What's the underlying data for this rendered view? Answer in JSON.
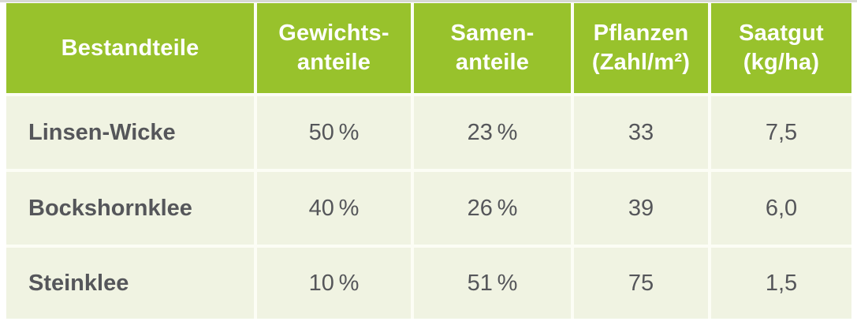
{
  "colors": {
    "header_bg": "#98c22c",
    "header_text": "#ffffff",
    "body_bg": "#f0f3e2",
    "body_text": "#55565a",
    "gap": "#fcfdf5",
    "top_line": "#d7d9d3",
    "page_bg": "#ffffff"
  },
  "table": {
    "columns": [
      {
        "id": "bestandteile",
        "lines": [
          "Bestandteile",
          ""
        ]
      },
      {
        "id": "gewichtsanteile",
        "lines": [
          "Gewichts-",
          "anteile"
        ]
      },
      {
        "id": "samenanteile",
        "lines": [
          "Samen-",
          "anteile"
        ]
      },
      {
        "id": "pflanzen",
        "lines": [
          "Pflanzen",
          "(Zahl/m²)"
        ]
      },
      {
        "id": "saatgut",
        "lines": [
          "Saatgut",
          "(kg/ha)"
        ]
      }
    ],
    "rows": [
      {
        "label": "Linsen-Wicke",
        "values": [
          "50 %",
          "23 %",
          "33",
          "7,5"
        ]
      },
      {
        "label": "Bockshornklee",
        "values": [
          "40 %",
          "26 %",
          "39",
          "6,0"
        ]
      },
      {
        "label": "Steinklee",
        "values": [
          "10 %",
          "51 %",
          "75",
          "1,5"
        ]
      }
    ]
  }
}
